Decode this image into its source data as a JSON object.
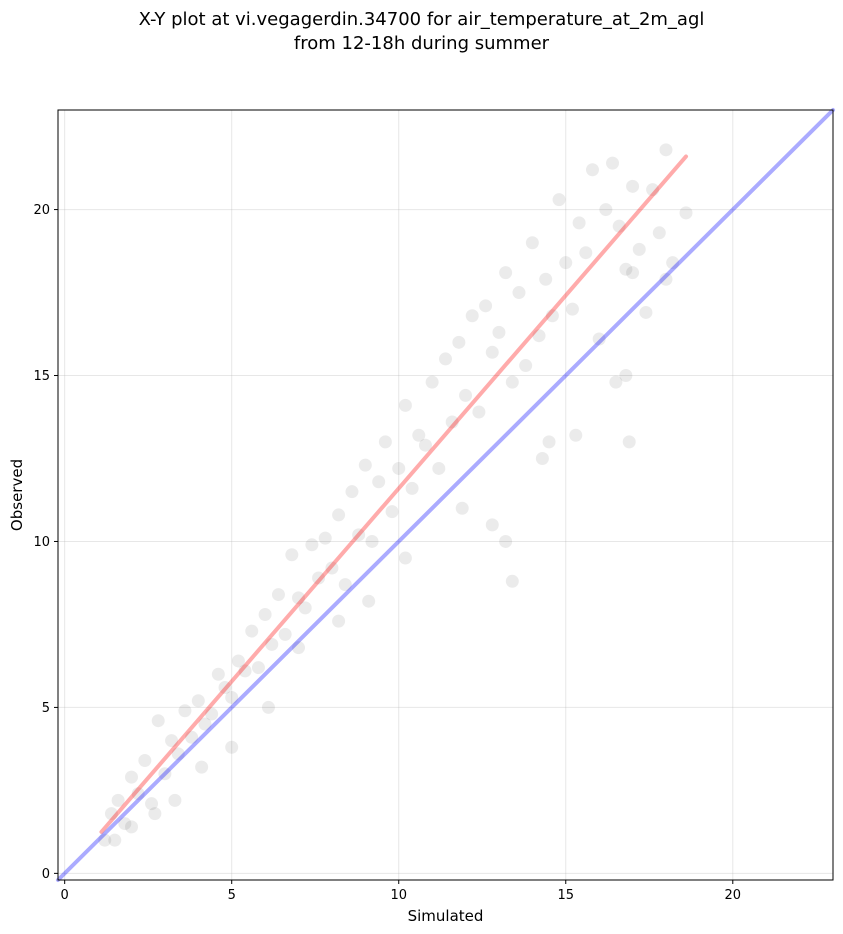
{
  "chart_data": {
    "type": "scatter",
    "title_line1": "X-Y plot at vi.vegagerdin.34700 for air_temperature_at_2m_agl",
    "title_line2": "from 12-18h during summer",
    "xlabel": "Simulated",
    "ylabel": "Observed",
    "xlim": [
      -0.2,
      23
    ],
    "ylim": [
      -0.2,
      23
    ],
    "x_ticks": [
      0,
      5,
      10,
      15,
      20
    ],
    "y_ticks": [
      0,
      5,
      10,
      15,
      20
    ],
    "x_tick_labels": [
      "0",
      "5",
      "10",
      "15",
      "20"
    ],
    "y_tick_labels": [
      "0",
      "5",
      "10",
      "15",
      "20"
    ],
    "grid": true,
    "point_color": "#000000",
    "point_alpha": 0.08,
    "series": [
      {
        "values_description": "observations",
        "x": [
          1.2,
          1.4,
          1.6,
          1.8,
          2.0,
          2.2,
          2.4,
          2.6,
          2.8,
          3.0,
          3.2,
          3.4,
          3.6,
          3.8,
          4.0,
          4.2,
          4.4,
          4.6,
          4.8,
          5.0,
          5.2,
          5.4,
          5.6,
          5.8,
          6.0,
          6.2,
          6.4,
          6.6,
          6.8,
          7.0,
          7.2,
          7.4,
          7.6,
          7.8,
          8.0,
          8.2,
          8.4,
          8.6,
          8.8,
          9.0,
          9.2,
          9.4,
          9.6,
          9.8,
          10.0,
          10.2,
          10.4,
          10.6,
          10.8,
          11.0,
          11.2,
          11.4,
          11.6,
          11.8,
          12.0,
          12.2,
          12.4,
          12.6,
          12.8,
          13.0,
          13.2,
          13.4,
          13.6,
          13.8,
          14.0,
          14.2,
          14.4,
          14.6,
          14.8,
          15.0,
          15.2,
          15.4,
          15.6,
          15.8,
          16.0,
          16.2,
          16.4,
          16.6,
          16.8,
          17.0,
          17.2,
          17.4,
          17.6,
          17.8,
          18.0,
          18.2,
          18.6,
          16.9,
          15.3,
          13.4,
          12.8,
          11.9,
          10.2,
          9.1,
          8.2,
          7.0,
          6.1,
          5.0,
          4.1,
          3.3,
          2.7,
          2.0,
          1.5,
          14.3,
          14.5,
          13.2,
          16.5,
          16.8,
          17.0,
          18.0
        ],
        "y": [
          1.0,
          1.8,
          2.2,
          1.5,
          2.9,
          2.4,
          3.4,
          2.1,
          4.6,
          3.0,
          4.0,
          3.6,
          4.9,
          4.1,
          5.2,
          4.5,
          4.8,
          6.0,
          5.6,
          5.3,
          6.4,
          6.1,
          7.3,
          6.2,
          7.8,
          6.9,
          8.4,
          7.2,
          9.6,
          8.3,
          8.0,
          9.9,
          8.9,
          10.1,
          9.2,
          10.8,
          8.7,
          11.5,
          10.2,
          12.3,
          10.0,
          11.8,
          13.0,
          10.9,
          12.2,
          14.1,
          11.6,
          13.2,
          12.9,
          14.8,
          12.2,
          15.5,
          13.6,
          16.0,
          14.4,
          16.8,
          13.9,
          17.1,
          15.7,
          16.3,
          18.1,
          14.8,
          17.5,
          15.3,
          19.0,
          16.2,
          17.9,
          16.8,
          20.3,
          18.4,
          17.0,
          19.6,
          18.7,
          21.2,
          16.1,
          20.0,
          21.4,
          19.5,
          18.2,
          20.7,
          18.8,
          16.9,
          20.6,
          19.3,
          17.9,
          18.4,
          19.9,
          13.0,
          13.2,
          8.8,
          10.5,
          11.0,
          9.5,
          8.2,
          7.6,
          6.8,
          5.0,
          3.8,
          3.2,
          2.2,
          1.8,
          1.4,
          1.0,
          12.5,
          13.0,
          10.0,
          14.8,
          15.0,
          18.1,
          21.8
        ]
      }
    ],
    "reference_lines": [
      {
        "name": "",
        "color": "#0000ff",
        "alpha": 0.33,
        "x": [
          -0.2,
          23
        ],
        "y": [
          -0.2,
          23
        ]
      },
      {
        "name": "",
        "color": "#ff0000",
        "alpha": 0.33,
        "x": [
          1.1,
          18.6
        ],
        "y": [
          1.25,
          21.6
        ]
      }
    ]
  }
}
